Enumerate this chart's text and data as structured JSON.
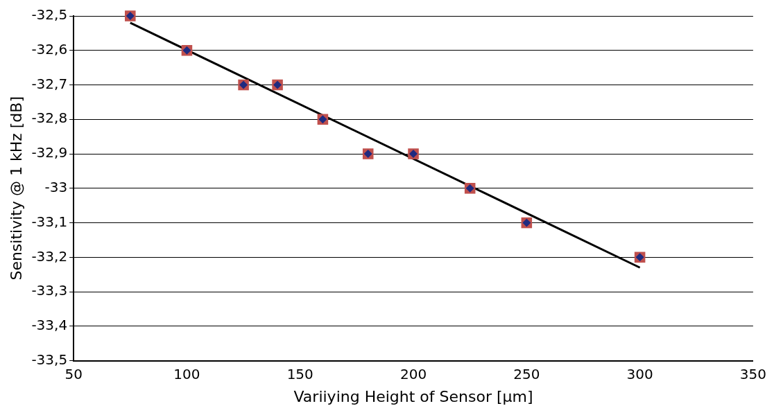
{
  "chart_data": {
    "type": "scatter",
    "xlabel": "Variiying Height of Sensor [µm]",
    "ylabel": "Sensitivity @ 1 kHz [dB]",
    "xlim": [
      50,
      350
    ],
    "xticks": [
      50,
      100,
      150,
      200,
      250,
      300,
      350
    ],
    "ylim": [
      -33.5,
      -32.5
    ],
    "yticks": [
      {
        "value": -33.5,
        "label": "-33,5"
      },
      {
        "value": -33.4,
        "label": "-33,4"
      },
      {
        "value": -33.3,
        "label": "-33,3"
      },
      {
        "value": -33.2,
        "label": "-33,2"
      },
      {
        "value": -33.1,
        "label": "-33,1"
      },
      -33,
      {
        "value": -32.9,
        "label": "-32,9"
      },
      {
        "value": -32.8,
        "label": "-32,8"
      },
      {
        "value": -32.7,
        "label": "-32,7"
      },
      {
        "value": -32.6,
        "label": "-32,6"
      },
      {
        "value": -32.5,
        "label": "-32,5"
      }
    ],
    "grid": "y",
    "legend": false,
    "series": [
      {
        "type": "line",
        "color": "#000000",
        "marker": "none",
        "x": [
          75,
          300
        ],
        "values": [
          -32.52,
          -33.23
        ]
      },
      {
        "color": "#c0504d",
        "marker": "square",
        "x": [
          75,
          100,
          125,
          140,
          160,
          180,
          200,
          225,
          250,
          300
        ],
        "values": [
          -32.5,
          -32.6,
          -32.7,
          -32.7,
          -32.8,
          -32.9,
          -32.9,
          -33.0,
          -33.1,
          -33.2
        ]
      },
      {
        "color": "#1f2a80",
        "marker": "diamond",
        "x": [
          75,
          100,
          125,
          140,
          160,
          180,
          200,
          225,
          250,
          300
        ],
        "values": [
          -32.5,
          -32.6,
          -32.7,
          -32.7,
          -32.8,
          -32.9,
          -32.9,
          -33.0,
          -33.1,
          -33.2
        ]
      }
    ]
  }
}
